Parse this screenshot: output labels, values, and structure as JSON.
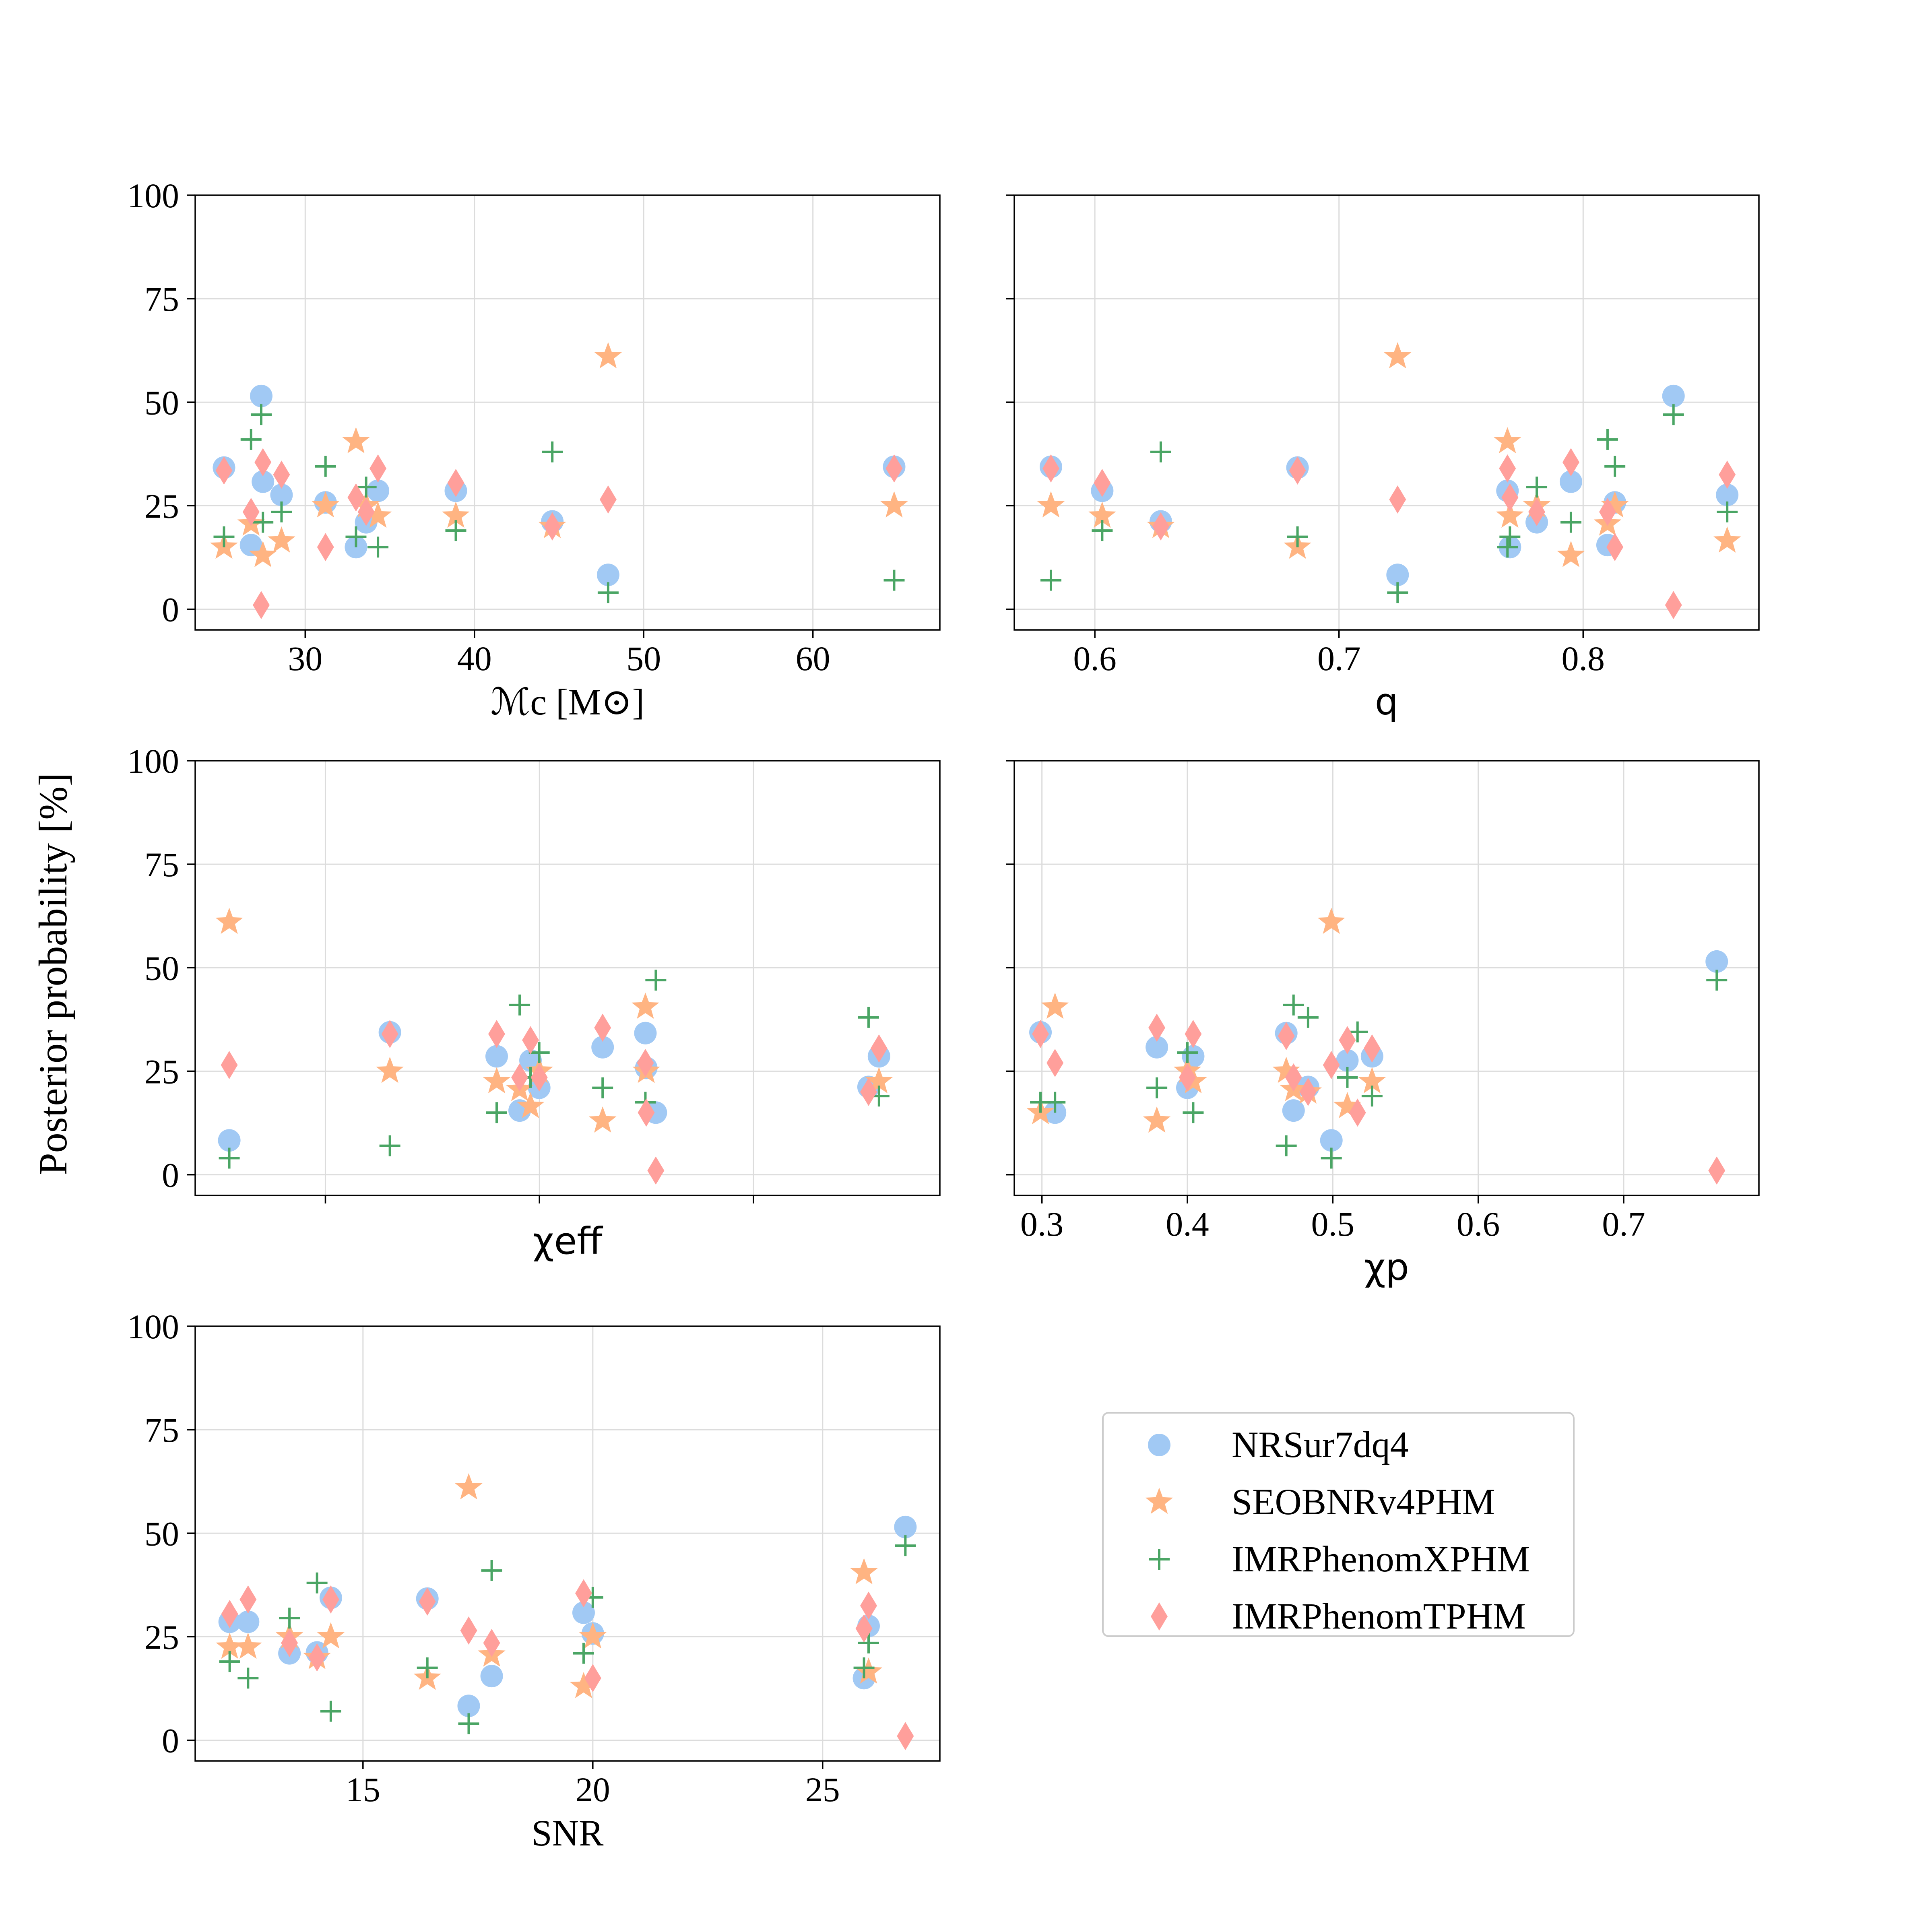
{
  "ylabel": "Posterior probability [%]",
  "legend": {
    "entries": [
      {
        "label": "NRSur7dq4",
        "marker": "circle",
        "color": "#a1c9f4"
      },
      {
        "label": "SEOBNRv4PHM",
        "marker": "star",
        "color": "#ffb482"
      },
      {
        "label": "IMRPhenomXPHM",
        "marker": "plus",
        "color": "#4aa564"
      },
      {
        "label": "IMRPhenomTPHM",
        "marker": "diamond",
        "color": "#ff9f9b"
      }
    ]
  },
  "chart_data": [
    {
      "type": "scatter",
      "id": "mc",
      "xlabel": "ℳc [M⊙]",
      "ylabel": "Posterior probability [%]",
      "xlim": [
        23.5,
        67.5
      ],
      "ylim": [
        -5,
        100
      ],
      "xticks": [
        30,
        40,
        50,
        60
      ],
      "yticks": [
        0,
        25,
        50,
        75,
        100
      ],
      "series": [
        {
          "name": "NRSur7dq4",
          "x": [
            25.2,
            26.8,
            27.4,
            27.5,
            28.6,
            31.2,
            33.0,
            33.6,
            34.3,
            38.9,
            44.6,
            47.9,
            64.8
          ],
          "y": [
            34.2,
            15.5,
            51.5,
            30.8,
            27.6,
            25.8,
            15.0,
            21.0,
            28.6,
            28.6,
            21.2,
            8.3,
            34.4
          ]
        },
        {
          "name": "SEOBNRv4PHM",
          "x": [
            25.2,
            26.8,
            27.5,
            28.6,
            31.2,
            33.0,
            33.6,
            34.3,
            38.9,
            44.6,
            47.9,
            64.8
          ],
          "y": [
            15.0,
            20.6,
            13.0,
            16.5,
            25.0,
            40.5,
            25.0,
            22.5,
            22.5,
            20.0,
            61.0,
            25.0
          ]
        },
        {
          "name": "IMRPhenomXPHM",
          "x": [
            25.2,
            26.8,
            27.4,
            27.5,
            28.6,
            31.2,
            33.0,
            33.6,
            34.3,
            38.9,
            44.6,
            47.9,
            64.8
          ],
          "y": [
            17.5,
            41.0,
            47.0,
            21.0,
            23.5,
            34.5,
            17.5,
            29.5,
            15.0,
            19.0,
            38.0,
            4.0,
            7.0
          ]
        },
        {
          "name": "IMRPhenomTPHM",
          "x": [
            25.2,
            26.8,
            27.4,
            27.5,
            28.6,
            31.2,
            33.0,
            33.6,
            34.3,
            38.9,
            44.6,
            47.9,
            64.8
          ],
          "y": [
            33.5,
            23.5,
            1.0,
            35.5,
            32.5,
            15.0,
            27.0,
            23.5,
            34.0,
            30.5,
            20.0,
            26.5,
            34.0
          ]
        }
      ]
    },
    {
      "type": "scatter",
      "id": "q",
      "xlabel": "q",
      "ylabel": "Posterior probability [%]",
      "xlim": [
        0.567,
        0.872
      ],
      "ylim": [
        -5,
        100
      ],
      "xticks": [
        0.6,
        0.7,
        0.8
      ],
      "yticks": [
        0,
        25,
        50,
        75,
        100
      ],
      "series": [
        {
          "name": "NRSur7dq4",
          "x": [
            0.582,
            0.603,
            0.627,
            0.683,
            0.724,
            0.769,
            0.77,
            0.781,
            0.795,
            0.81,
            0.813,
            0.837,
            0.859
          ],
          "y": [
            34.4,
            28.6,
            21.2,
            34.2,
            8.3,
            28.6,
            15.0,
            21.0,
            30.8,
            15.5,
            25.8,
            51.5,
            27.6
          ]
        },
        {
          "name": "SEOBNRv4PHM",
          "x": [
            0.582,
            0.603,
            0.627,
            0.683,
            0.724,
            0.769,
            0.77,
            0.781,
            0.795,
            0.81,
            0.813,
            0.859
          ],
          "y": [
            25.0,
            22.5,
            20.0,
            15.0,
            61.0,
            40.5,
            22.5,
            25.0,
            13.0,
            20.6,
            25.0,
            16.5
          ]
        },
        {
          "name": "IMRPhenomXPHM",
          "x": [
            0.582,
            0.603,
            0.627,
            0.683,
            0.724,
            0.769,
            0.77,
            0.781,
            0.795,
            0.81,
            0.813,
            0.837,
            0.859
          ],
          "y": [
            7.0,
            19.0,
            38.0,
            17.5,
            4.0,
            15.0,
            17.5,
            29.5,
            21.0,
            41.0,
            34.5,
            47.0,
            23.5
          ]
        },
        {
          "name": "IMRPhenomTPHM",
          "x": [
            0.582,
            0.603,
            0.627,
            0.683,
            0.724,
            0.769,
            0.77,
            0.781,
            0.795,
            0.81,
            0.813,
            0.837,
            0.859
          ],
          "y": [
            34.0,
            30.5,
            20.0,
            33.5,
            26.5,
            34.0,
            27.0,
            23.5,
            35.5,
            23.5,
            15.0,
            1.0,
            32.5
          ]
        }
      ]
    },
    {
      "type": "scatter",
      "id": "chieff",
      "xlabel": "χeff",
      "ylabel": "Posterior probability [%]",
      "xlim": [
        -0.03,
        0.32
      ],
      "ylim": [
        -5,
        100
      ],
      "xticks": [],
      "grid_x": [
        0.0312,
        0.1318,
        0.2324
      ],
      "yticks": [
        0,
        25,
        50,
        75,
        100
      ],
      "series": [
        {
          "name": "NRSur7dq4",
          "x": [
            -0.014,
            0.0615,
            0.1117,
            0.1225,
            0.1276,
            0.1317,
            0.1615,
            0.1816,
            0.182,
            0.1865,
            0.2865,
            0.2914
          ],
          "y": [
            8.3,
            34.4,
            28.6,
            15.5,
            27.6,
            21.0,
            30.8,
            34.2,
            25.8,
            15.0,
            21.2,
            28.6
          ]
        },
        {
          "name": "SEOBNRv4PHM",
          "x": [
            -0.014,
            0.0615,
            0.1117,
            0.1225,
            0.1276,
            0.1317,
            0.1615,
            0.1816,
            0.182,
            0.2914
          ],
          "y": [
            61.0,
            25.0,
            22.5,
            20.6,
            16.5,
            25.0,
            13.0,
            40.5,
            25.0,
            22.5
          ]
        },
        {
          "name": "IMRPhenomXPHM",
          "x": [
            -0.014,
            0.0615,
            0.1117,
            0.1225,
            0.1276,
            0.1317,
            0.1615,
            0.1816,
            0.1865,
            0.2865,
            0.2914
          ],
          "y": [
            4.0,
            7.0,
            15.0,
            41.0,
            23.5,
            29.5,
            21.0,
            17.5,
            47.0,
            38.0,
            19.0
          ]
        },
        {
          "name": "IMRPhenomTPHM",
          "x": [
            -0.014,
            0.0615,
            0.1117,
            0.1225,
            0.1276,
            0.1317,
            0.1615,
            0.1816,
            0.182,
            0.1865,
            0.2865,
            0.2914
          ],
          "y": [
            26.5,
            34.0,
            34.0,
            23.5,
            32.5,
            23.5,
            35.5,
            27.0,
            15.0,
            1.0,
            20.0,
            30.5
          ]
        }
      ]
    },
    {
      "type": "scatter",
      "id": "chip",
      "xlabel": "χp",
      "ylabel": "Posterior probability [%]",
      "xlim": [
        0.281,
        0.793
      ],
      "ylim": [
        -5,
        100
      ],
      "xticks": [
        0.3,
        0.4,
        0.5,
        0.6,
        0.7
      ],
      "yticks": [
        0,
        25,
        50,
        75,
        100
      ],
      "series": [
        {
          "name": "NRSur7dq4",
          "x": [
            0.299,
            0.309,
            0.379,
            0.4,
            0.404,
            0.468,
            0.473,
            0.483,
            0.499,
            0.51,
            0.527,
            0.764
          ],
          "y": [
            34.4,
            15.0,
            30.8,
            21.0,
            28.6,
            34.2,
            15.5,
            21.2,
            8.3,
            27.6,
            28.6,
            51.5
          ]
        },
        {
          "name": "SEOBNRv4PHM",
          "x": [
            0.299,
            0.309,
            0.379,
            0.4,
            0.404,
            0.468,
            0.473,
            0.483,
            0.499,
            0.51,
            0.527
          ],
          "y": [
            15.0,
            40.5,
            13.0,
            25.0,
            22.5,
            25.0,
            20.6,
            20.0,
            61.0,
            16.5,
            22.5
          ]
        },
        {
          "name": "IMRPhenomXPHM",
          "x": [
            0.299,
            0.309,
            0.379,
            0.4,
            0.404,
            0.468,
            0.473,
            0.483,
            0.499,
            0.51,
            0.517,
            0.527,
            0.764
          ],
          "y": [
            17.5,
            17.5,
            21.0,
            29.5,
            15.0,
            7.0,
            41.0,
            38.0,
            4.0,
            23.5,
            34.5,
            19.0,
            47.0
          ]
        },
        {
          "name": "IMRPhenomTPHM",
          "x": [
            0.299,
            0.309,
            0.379,
            0.4,
            0.404,
            0.468,
            0.473,
            0.483,
            0.499,
            0.51,
            0.517,
            0.527,
            0.764
          ],
          "y": [
            34.0,
            27.0,
            35.5,
            23.5,
            34.0,
            33.5,
            23.5,
            20.0,
            26.5,
            32.5,
            15.0,
            30.5,
            1.0
          ]
        }
      ]
    },
    {
      "type": "scatter",
      "id": "snr",
      "xlabel": "SNR",
      "ylabel": "Posterior probability [%]",
      "xlim": [
        11.35,
        27.55
      ],
      "ylim": [
        -5,
        100
      ],
      "xticks": [
        15,
        20,
        25
      ],
      "yticks": [
        0,
        25,
        50,
        75,
        100
      ],
      "series": [
        {
          "name": "NRSur7dq4",
          "x": [
            12.1,
            12.5,
            13.4,
            14.0,
            14.3,
            16.4,
            17.3,
            17.8,
            19.8,
            20.0,
            25.9,
            26.0,
            26.8
          ],
          "y": [
            28.6,
            28.6,
            21.0,
            21.2,
            34.4,
            34.2,
            8.3,
            15.5,
            30.8,
            25.8,
            15.0,
            27.6,
            51.5
          ]
        },
        {
          "name": "SEOBNRv4PHM",
          "x": [
            12.1,
            12.5,
            13.4,
            14.0,
            14.3,
            16.4,
            17.3,
            17.8,
            19.8,
            20.0,
            25.9,
            26.0
          ],
          "y": [
            22.5,
            22.5,
            25.0,
            20.0,
            25.0,
            15.0,
            61.0,
            20.6,
            13.0,
            25.0,
            40.5,
            16.5
          ]
        },
        {
          "name": "IMRPhenomXPHM",
          "x": [
            12.1,
            12.5,
            13.4,
            14.0,
            14.3,
            16.4,
            17.3,
            17.8,
            19.8,
            20.0,
            25.9,
            26.0,
            26.8
          ],
          "y": [
            19.0,
            15.0,
            29.5,
            38.0,
            7.0,
            17.5,
            4.0,
            41.0,
            21.0,
            34.5,
            17.5,
            23.5,
            47.0
          ]
        },
        {
          "name": "IMRPhenomTPHM",
          "x": [
            12.1,
            12.5,
            13.4,
            14.0,
            14.3,
            16.4,
            17.3,
            17.8,
            19.8,
            20.0,
            25.9,
            26.0,
            26.8
          ],
          "y": [
            30.5,
            34.0,
            23.5,
            20.0,
            34.0,
            33.5,
            26.5,
            23.5,
            35.5,
            15.0,
            27.0,
            32.5,
            1.0
          ]
        }
      ]
    }
  ]
}
